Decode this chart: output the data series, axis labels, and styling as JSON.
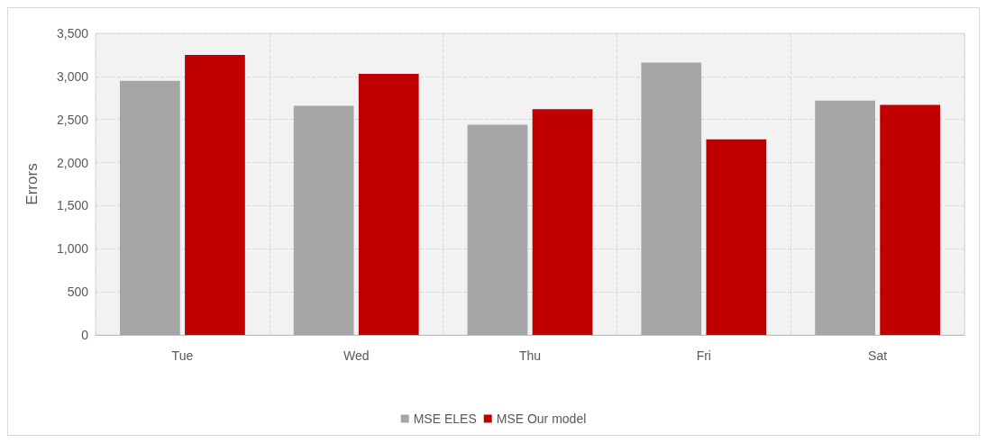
{
  "chart_data": {
    "type": "bar",
    "ylabel": "Errors",
    "categories": [
      "Tue",
      "Wed",
      "Thu",
      "Fri",
      "Sat"
    ],
    "series": [
      {
        "name": "MSE ELES",
        "color": "#a6a6a6",
        "values": [
          2950,
          2660,
          2440,
          3160,
          2720
        ]
      },
      {
        "name": "MSE Our model",
        "color": "#c00000",
        "values": [
          3250,
          3030,
          2620,
          2270,
          2670
        ]
      }
    ],
    "ylim": [
      0,
      3500
    ],
    "yticks": [
      0,
      500,
      {
        "value": 1000,
        "label": "1,000"
      },
      {
        "value": 1500,
        "label": "1,500"
      },
      {
        "value": 2000,
        "label": "2,000"
      },
      {
        "value": 2500,
        "label": "2,500"
      },
      {
        "value": 3000,
        "label": "3,000"
      },
      {
        "value": 3500,
        "label": "3,500"
      }
    ],
    "grid": true,
    "legend": "bottom"
  }
}
